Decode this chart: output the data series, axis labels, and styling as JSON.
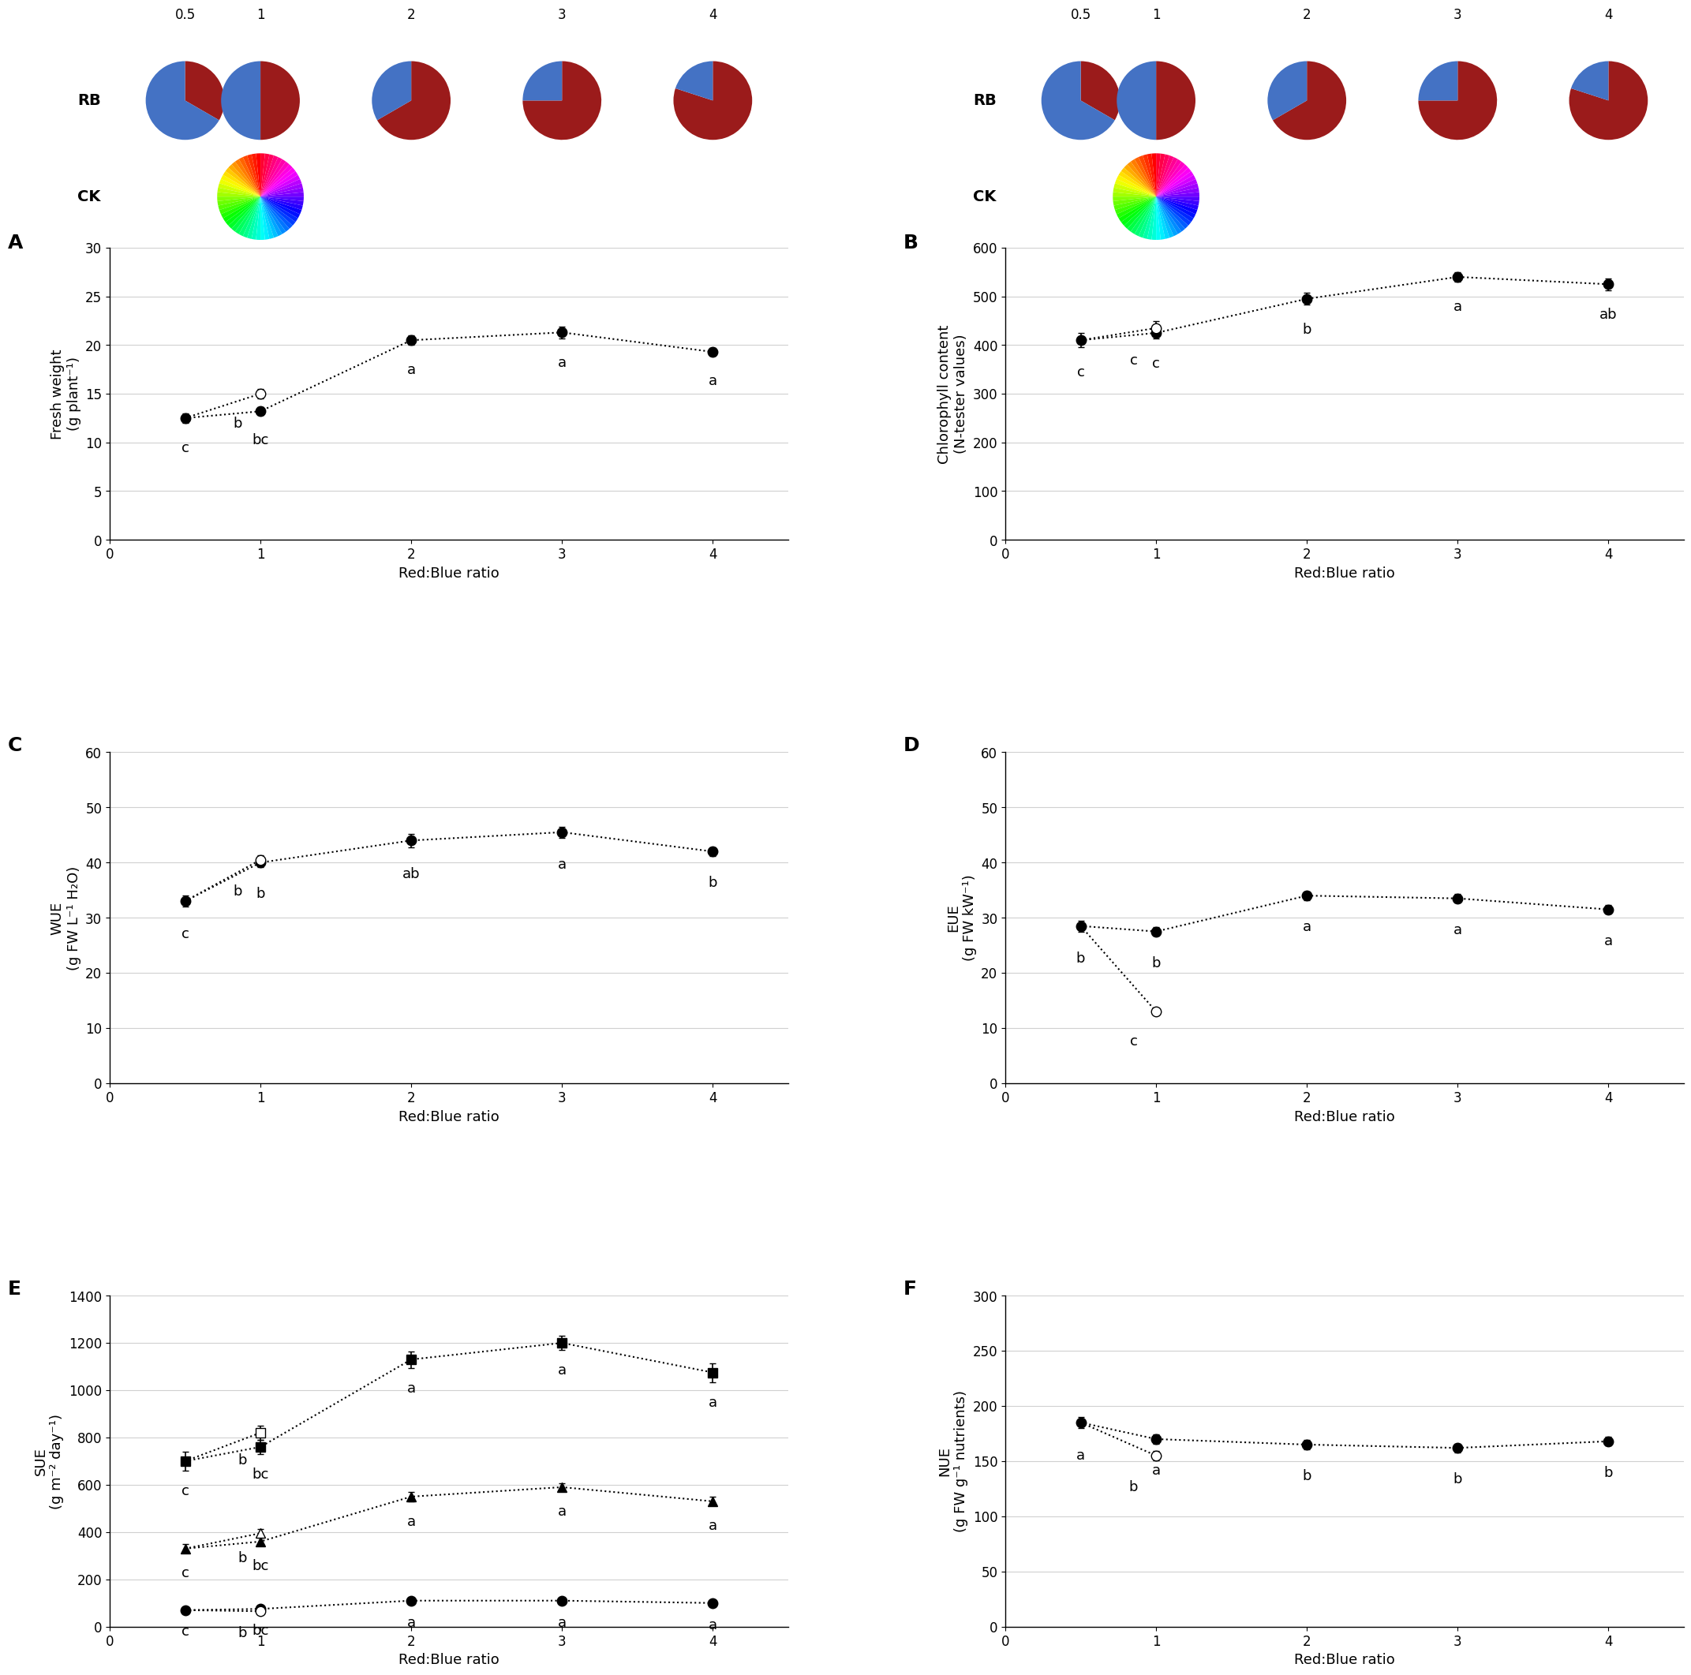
{
  "x_values": [
    0.5,
    1,
    2,
    3,
    4
  ],
  "panel_A": {
    "filled_y": [
      12.5,
      13.2,
      20.5,
      21.3,
      19.3
    ],
    "filled_yerr": [
      0.5,
      0.4,
      0.5,
      0.6,
      0.4
    ],
    "open_y": [
      null,
      15.0,
      null,
      null,
      null
    ],
    "open_yerr": [
      null,
      0.5,
      null,
      null,
      null
    ],
    "letters_filled": [
      "c",
      "bc",
      "a",
      "a",
      "a"
    ],
    "letters_open": [
      null,
      "b",
      null,
      null,
      null
    ],
    "ylabel": "Fresh weight\n(g plant⁻¹)",
    "ylim": [
      0,
      30
    ],
    "yticks": [
      0,
      5,
      10,
      15,
      20,
      25,
      30
    ],
    "title": "A"
  },
  "panel_B": {
    "filled_y": [
      410,
      425,
      495,
      540,
      525
    ],
    "filled_yerr": [
      15,
      12,
      12,
      10,
      12
    ],
    "open_y": [
      null,
      435,
      null,
      null,
      null
    ],
    "open_yerr": [
      null,
      15,
      null,
      null,
      null
    ],
    "letters_filled": [
      "c",
      "c",
      "b",
      "a",
      "ab"
    ],
    "letters_open": [
      null,
      "c",
      null,
      null,
      null
    ],
    "ylabel": "Chlorophyll content\n(N-tester values)",
    "ylim": [
      0,
      600
    ],
    "yticks": [
      0,
      100,
      200,
      300,
      400,
      500,
      600
    ],
    "title": "B"
  },
  "panel_C": {
    "filled_y": [
      33.0,
      40.0,
      44.0,
      45.5,
      42.0
    ],
    "filled_yerr": [
      1.0,
      0.8,
      1.2,
      1.0,
      0.8
    ],
    "open_y": [
      null,
      40.5,
      null,
      null,
      null
    ],
    "open_yerr": [
      null,
      0.8,
      null,
      null,
      null
    ],
    "letters_filled": [
      "c",
      "b",
      "ab",
      "a",
      "b"
    ],
    "letters_open": [
      null,
      "b",
      null,
      null,
      null
    ],
    "ylabel": "WUE\n(g FW L⁻¹ H₂O)",
    "ylim": [
      0,
      60
    ],
    "yticks": [
      0,
      10,
      20,
      30,
      40,
      50,
      60
    ],
    "title": "C"
  },
  "panel_D": {
    "filled_y": [
      28.5,
      27.5,
      34.0,
      33.5,
      31.5
    ],
    "filled_yerr": [
      1.0,
      0.8,
      0.8,
      0.8,
      0.8
    ],
    "open_y": [
      null,
      13.0,
      null,
      null,
      null
    ],
    "open_yerr": [
      null,
      0.5,
      null,
      null,
      null
    ],
    "letters_filled": [
      "b",
      "b",
      "a",
      "a",
      "a"
    ],
    "letters_open": [
      null,
      "c",
      null,
      null,
      null
    ],
    "ylabel": "EUE\n(g FW kW⁻¹)",
    "ylim": [
      0,
      60
    ],
    "yticks": [
      0,
      10,
      20,
      30,
      40,
      50,
      60
    ],
    "title": "D"
  },
  "panel_E": {
    "series1_y": [
      700,
      760,
      1130,
      1200,
      1075
    ],
    "series1_yerr": [
      40,
      30,
      35,
      30,
      40
    ],
    "series1_open_y": [
      null,
      820,
      null,
      null,
      null
    ],
    "series1_open_yerr": [
      null,
      30,
      null,
      null,
      null
    ],
    "series1_letters_filled": [
      "c",
      "bc",
      "a",
      "a",
      "a"
    ],
    "series1_letter_open": "b",
    "series2_y": [
      330,
      360,
      550,
      590,
      530
    ],
    "series2_yerr": [
      18,
      18,
      20,
      18,
      18
    ],
    "series2_open_y": [
      null,
      395,
      null,
      null,
      null
    ],
    "series2_open_yerr": [
      null,
      18,
      null,
      null,
      null
    ],
    "series2_letters_filled": [
      "c",
      "bc",
      "a",
      "a",
      "a"
    ],
    "series2_letter_open": "b",
    "series3_y": [
      70,
      75,
      110,
      110,
      100
    ],
    "series3_yerr": [
      5,
      5,
      7,
      7,
      6
    ],
    "series3_open_y": [
      null,
      65,
      null,
      null,
      null
    ],
    "series3_open_yerr": [
      null,
      5,
      null,
      null,
      null
    ],
    "series3_letters_filled": [
      "c",
      "bc",
      "a",
      "a",
      "a"
    ],
    "series3_letter_open": "b",
    "ylabel": "SUE\n(g m⁻² day⁻¹)",
    "ylim": [
      0,
      1400
    ],
    "yticks": [
      0,
      200,
      400,
      600,
      800,
      1000,
      1200,
      1400
    ],
    "title": "E"
  },
  "panel_F": {
    "filled_y": [
      185,
      170,
      165,
      162,
      168
    ],
    "filled_yerr": [
      5,
      4,
      4,
      4,
      4
    ],
    "open_y": [
      null,
      155,
      null,
      null,
      null
    ],
    "open_yerr": [
      null,
      4,
      null,
      null,
      null
    ],
    "letters_filled": [
      "a",
      "a",
      "b",
      "b",
      "b"
    ],
    "letters_open": [
      null,
      "b",
      null,
      null,
      null
    ],
    "ylabel": "NUE\n(g FW g⁻¹ nutrients)",
    "ylim": [
      0,
      300
    ],
    "yticks": [
      0,
      50,
      100,
      150,
      200,
      250,
      300
    ],
    "title": "F"
  },
  "xlabel": "Red:Blue ratio",
  "pie_ratios": [
    0.5,
    1,
    2,
    3,
    4
  ],
  "red_color": "#9B1B1B",
  "blue_color": "#4472C4",
  "line_style": ":",
  "line_color": "black",
  "marker_size": 9,
  "fontsize_label": 13,
  "fontsize_tick": 12,
  "fontsize_letter": 13,
  "fontsize_panel": 18,
  "fontsize_rb": 14
}
